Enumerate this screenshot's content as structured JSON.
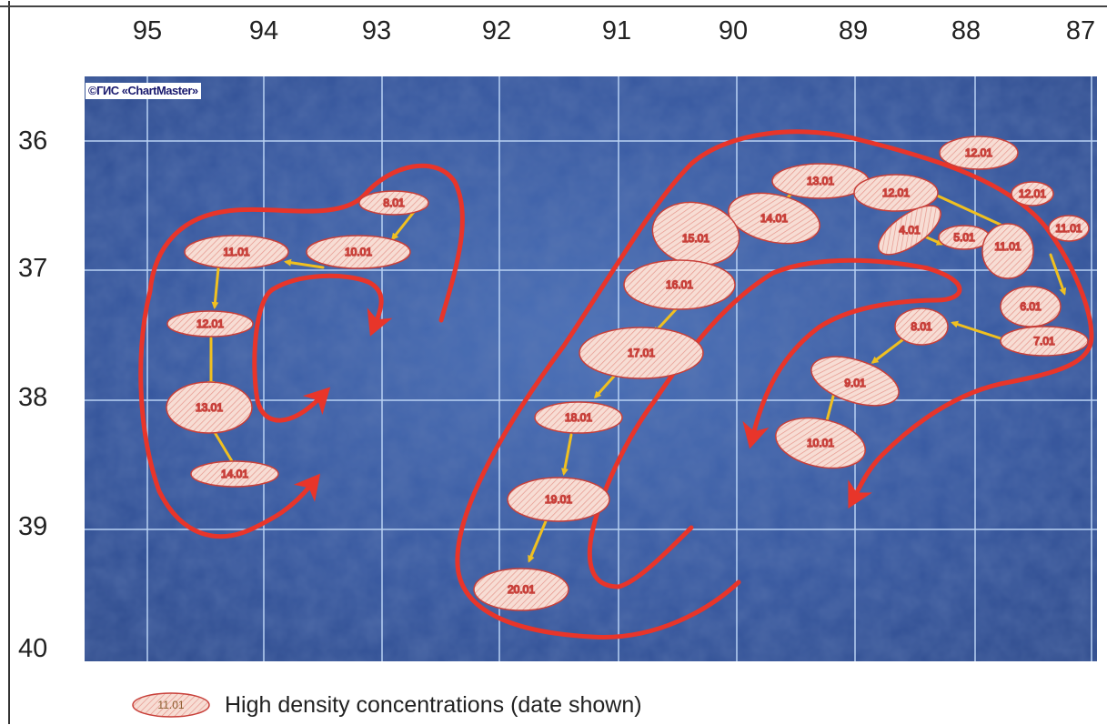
{
  "lon_labels": [
    "95",
    "94",
    "93",
    "92",
    "91",
    "90",
    "89",
    "88",
    "87"
  ],
  "lat_labels": [
    "36",
    "37",
    "38",
    "39",
    "40"
  ],
  "watermark": "©ГИС «ChartMaster»",
  "legend": {
    "swatch_label": "11.01",
    "text": "High density concentrations (date shown)"
  },
  "colors": {
    "sea": "#3a5ea8",
    "grid": "#b9d2f3",
    "blob_fill": "#f6dcd4",
    "blob_stroke": "#cc3a3a",
    "track_arrow": "#f0c020",
    "flow_arrow": "#e8352a"
  },
  "concentrations": [
    {
      "id": "c-8-01-w",
      "label": "8.01"
    },
    {
      "id": "c-10-01-w",
      "label": "10.01"
    },
    {
      "id": "c-11-01-w",
      "label": "11.01"
    },
    {
      "id": "c-12-01-w",
      "label": "12.01"
    },
    {
      "id": "c-13-01-w",
      "label": "13.01"
    },
    {
      "id": "c-14-01-w",
      "label": "14.01"
    },
    {
      "id": "c-12-01-ne",
      "label": "12.01"
    },
    {
      "id": "c-13-01-e",
      "label": "13.01"
    },
    {
      "id": "c-14-01-e",
      "label": "14.01"
    },
    {
      "id": "c-15-01",
      "label": "15.01"
    },
    {
      "id": "c-16-01",
      "label": "16.01"
    },
    {
      "id": "c-17-01",
      "label": "17.01"
    },
    {
      "id": "c-18-01-a",
      "label": "18.01"
    },
    {
      "id": "c-19-01",
      "label": "19.01"
    },
    {
      "id": "c-20-01",
      "label": "20.01"
    },
    {
      "id": "c-12-01-e2",
      "label": "12.01"
    },
    {
      "id": "c-12-01-e3",
      "label": "12.01"
    },
    {
      "id": "c-11-01-e-edge",
      "label": "11.01"
    },
    {
      "id": "c-4-01",
      "label": "4.01"
    },
    {
      "id": "c-5-01",
      "label": "5.01"
    },
    {
      "id": "c-11-01-e",
      "label": "11.01"
    },
    {
      "id": "c-6-01",
      "label": "6.01"
    },
    {
      "id": "c-7-01",
      "label": "7.01"
    },
    {
      "id": "c-8-01-e",
      "label": "8.01"
    },
    {
      "id": "c-9-01",
      "label": "9.01"
    },
    {
      "id": "c-10-01-e",
      "label": "10.01"
    }
  ]
}
